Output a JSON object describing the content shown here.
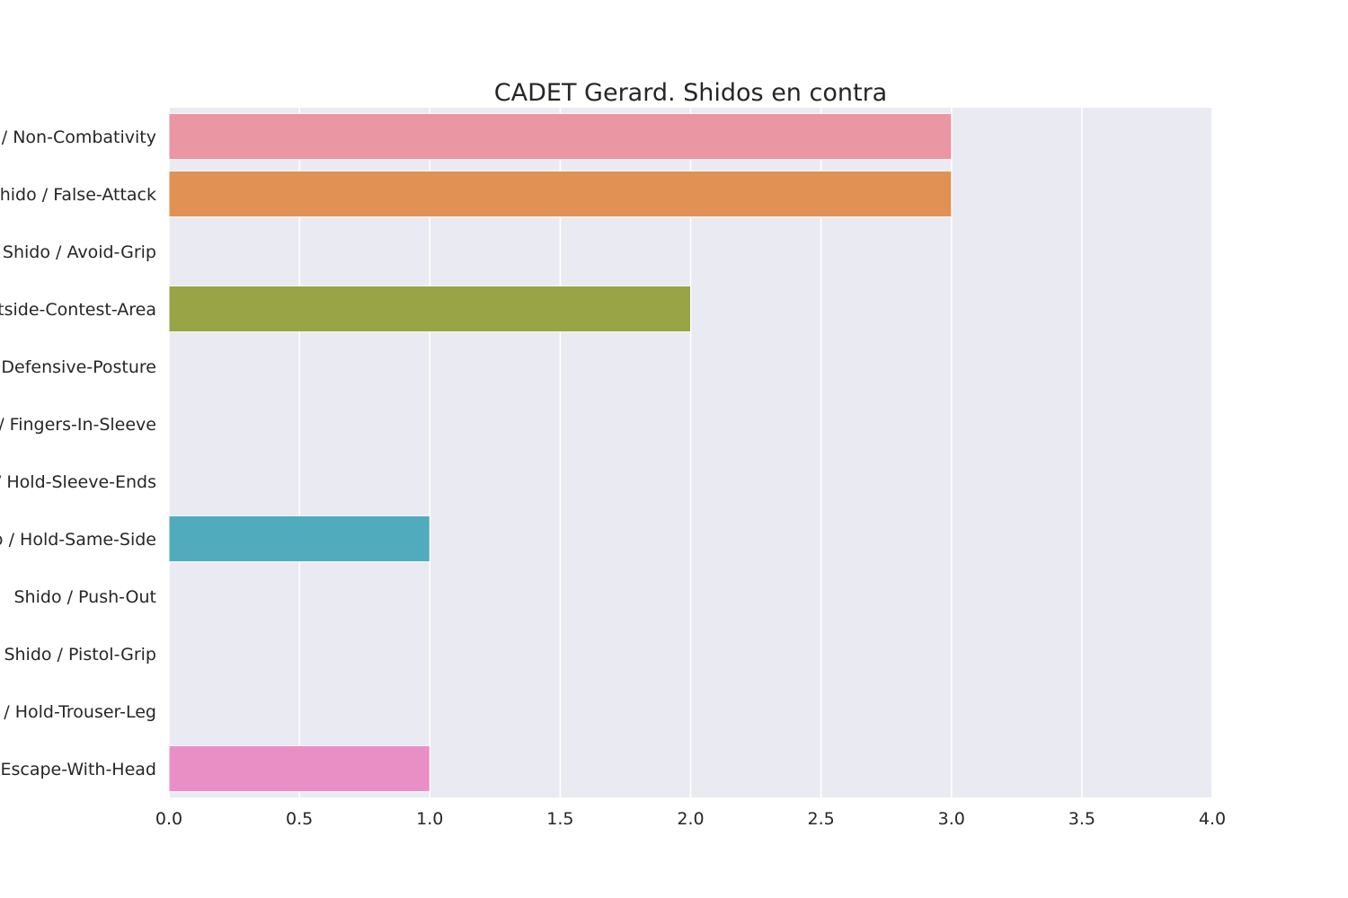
{
  "chart_data": {
    "type": "bar",
    "orientation": "horizontal",
    "title": "CADET Gerard. Shidos en contra",
    "xlabel": "",
    "ylabel": "",
    "xlim": [
      0,
      4.0
    ],
    "xticks": [
      "0.0",
      "0.5",
      "1.0",
      "1.5",
      "2.0",
      "2.5",
      "3.0",
      "3.5",
      "4.0"
    ],
    "grid": true,
    "categories": [
      "Shido / Non-Combativity",
      "Shido / False-Attack",
      "Shido / Avoid-Grip",
      "Shido / Outside-Contest-Area",
      "Shido / Defensive-Posture",
      "Shido / Fingers-In-Sleeve",
      "Shido / Hold-Sleeve-Ends",
      "Shido / Hold-Same-Side",
      "Shido / Push-Out",
      "Shido / Pistol-Grip",
      "Shido / Hold-Trouser-Leg",
      "Shido / Escape-With-Head"
    ],
    "values": [
      3,
      3,
      0,
      2,
      0,
      0,
      0,
      1,
      0,
      0,
      0,
      1
    ],
    "colors": [
      "#ea96a3",
      "#e19153",
      "#b1a346",
      "#98a446",
      "#58ab48",
      "#4fac83",
      "#52ae9e",
      "#50abbd",
      "#75a8e6",
      "#b39cf0",
      "#e18de9",
      "#e98fc6"
    ],
    "background": "#eaeaf2",
    "gridline_color": "#ffffff"
  }
}
